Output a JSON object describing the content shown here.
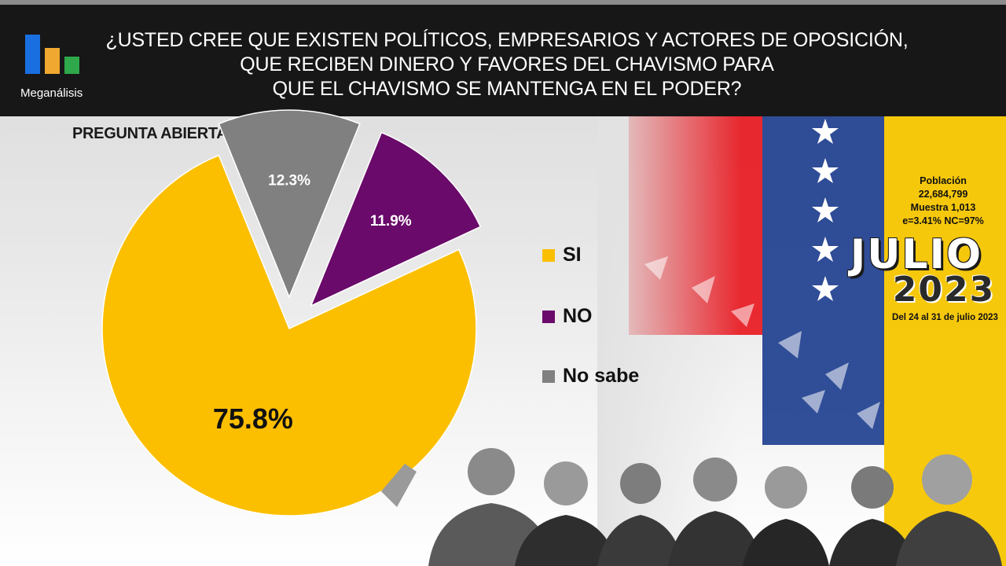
{
  "header": {
    "question_lines": [
      "¿USTED CREE QUE EXISTEN POLÍTICOS, EMPRESARIOS Y ACTORES DE OPOSICIÓN,",
      "QUE RECIBEN DINERO Y FAVORES DEL CHAVISMO PARA",
      "QUE EL CHAVISMO SE MANTENGA EN EL PODER?"
    ]
  },
  "brand": {
    "name": "Meganálisis",
    "logo_colors": [
      "#1a6fe0",
      "#f0a830",
      "#2ea84a"
    ]
  },
  "subtitle": "PREGUNTA ABIERTA",
  "chart_data": {
    "type": "pie",
    "exploded": true,
    "legend_position": "right",
    "slices": [
      {
        "label": "SI",
        "value": 75.8,
        "display": "75.8%",
        "color": "#fcbf00"
      },
      {
        "label": "NO",
        "value": 11.9,
        "display": "11.9%",
        "color": "#6a0a6a"
      },
      {
        "label": "No sabe",
        "value": 12.3,
        "display": "12.3%",
        "color": "#808080"
      }
    ]
  },
  "legend": {
    "items": [
      {
        "label": "SI",
        "color": "#fcbf00"
      },
      {
        "label": "NO",
        "color": "#6a0a6a"
      },
      {
        "label": "No sabe",
        "color": "#808080"
      }
    ]
  },
  "stats": {
    "line1": "Población",
    "line2": "22,684,799",
    "line3": "Muestra 1,013",
    "line4": "e=3.41%  NC=97%"
  },
  "period": {
    "month": "JULIO",
    "year": "2023",
    "dates": "Del 24 al 31 de julio 2023"
  },
  "flag_colors": [
    "#e8141c",
    "#1f3f8f",
    "#f7c600"
  ]
}
